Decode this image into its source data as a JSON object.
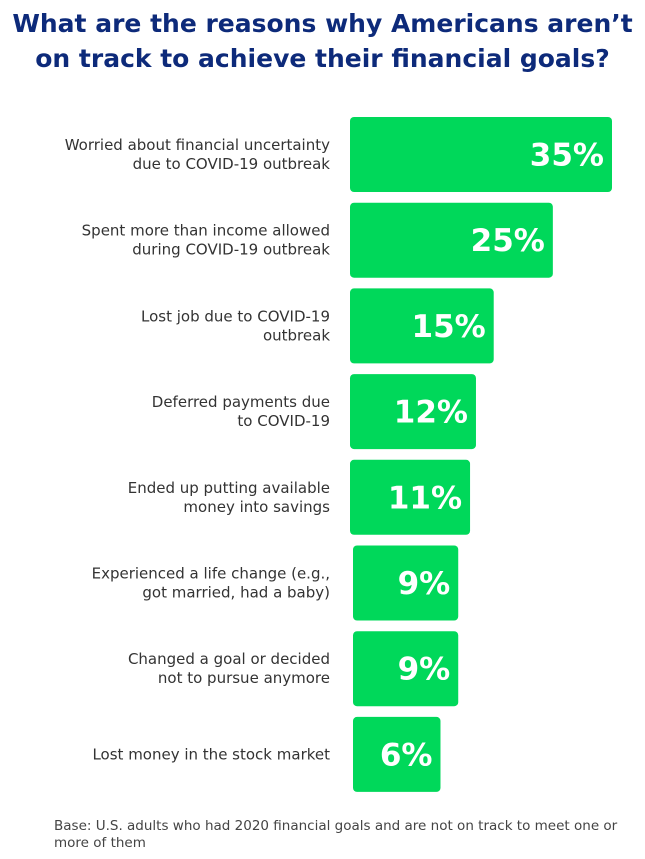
{
  "title_lines": [
    "What are the reasons why Americans aren’t",
    "on track to achieve their financial goals?"
  ],
  "footnote": "Base: U.S. adults who had 2020 financial goals and are not on track to meet one or more of them",
  "colors": {
    "bar": "#00d85a",
    "title": "#0d2a7a",
    "label": "#333333",
    "value": "#ffffff"
  },
  "chart_data": {
    "type": "bar",
    "orientation": "horizontal",
    "title": "What are the reasons why Americans aren’t on track to achieve their financial goals?",
    "categories": [
      [
        "Worried about financial uncertainty",
        "due to COVID-19 outbreak"
      ],
      [
        "Spent more than income allowed",
        "during COVID-19 outbreak"
      ],
      [
        "Lost job due to COVID-19",
        "outbreak"
      ],
      [
        "Deferred payments due",
        "to COVID-19"
      ],
      [
        "Ended up putting available",
        "money into savings"
      ],
      [
        "Experienced a life change (e.g.,",
        "got married, had a baby)"
      ],
      [
        "Changed a goal or decided",
        "not to pursue anymore"
      ],
      [
        "Lost money in the stock market"
      ]
    ],
    "values": [
      35,
      25,
      15,
      12,
      11,
      9,
      9,
      6
    ],
    "value_labels": [
      "35%",
      "25%",
      "15%",
      "12%",
      "11%",
      "9%",
      "9%",
      "6%"
    ],
    "unit": "%"
  }
}
